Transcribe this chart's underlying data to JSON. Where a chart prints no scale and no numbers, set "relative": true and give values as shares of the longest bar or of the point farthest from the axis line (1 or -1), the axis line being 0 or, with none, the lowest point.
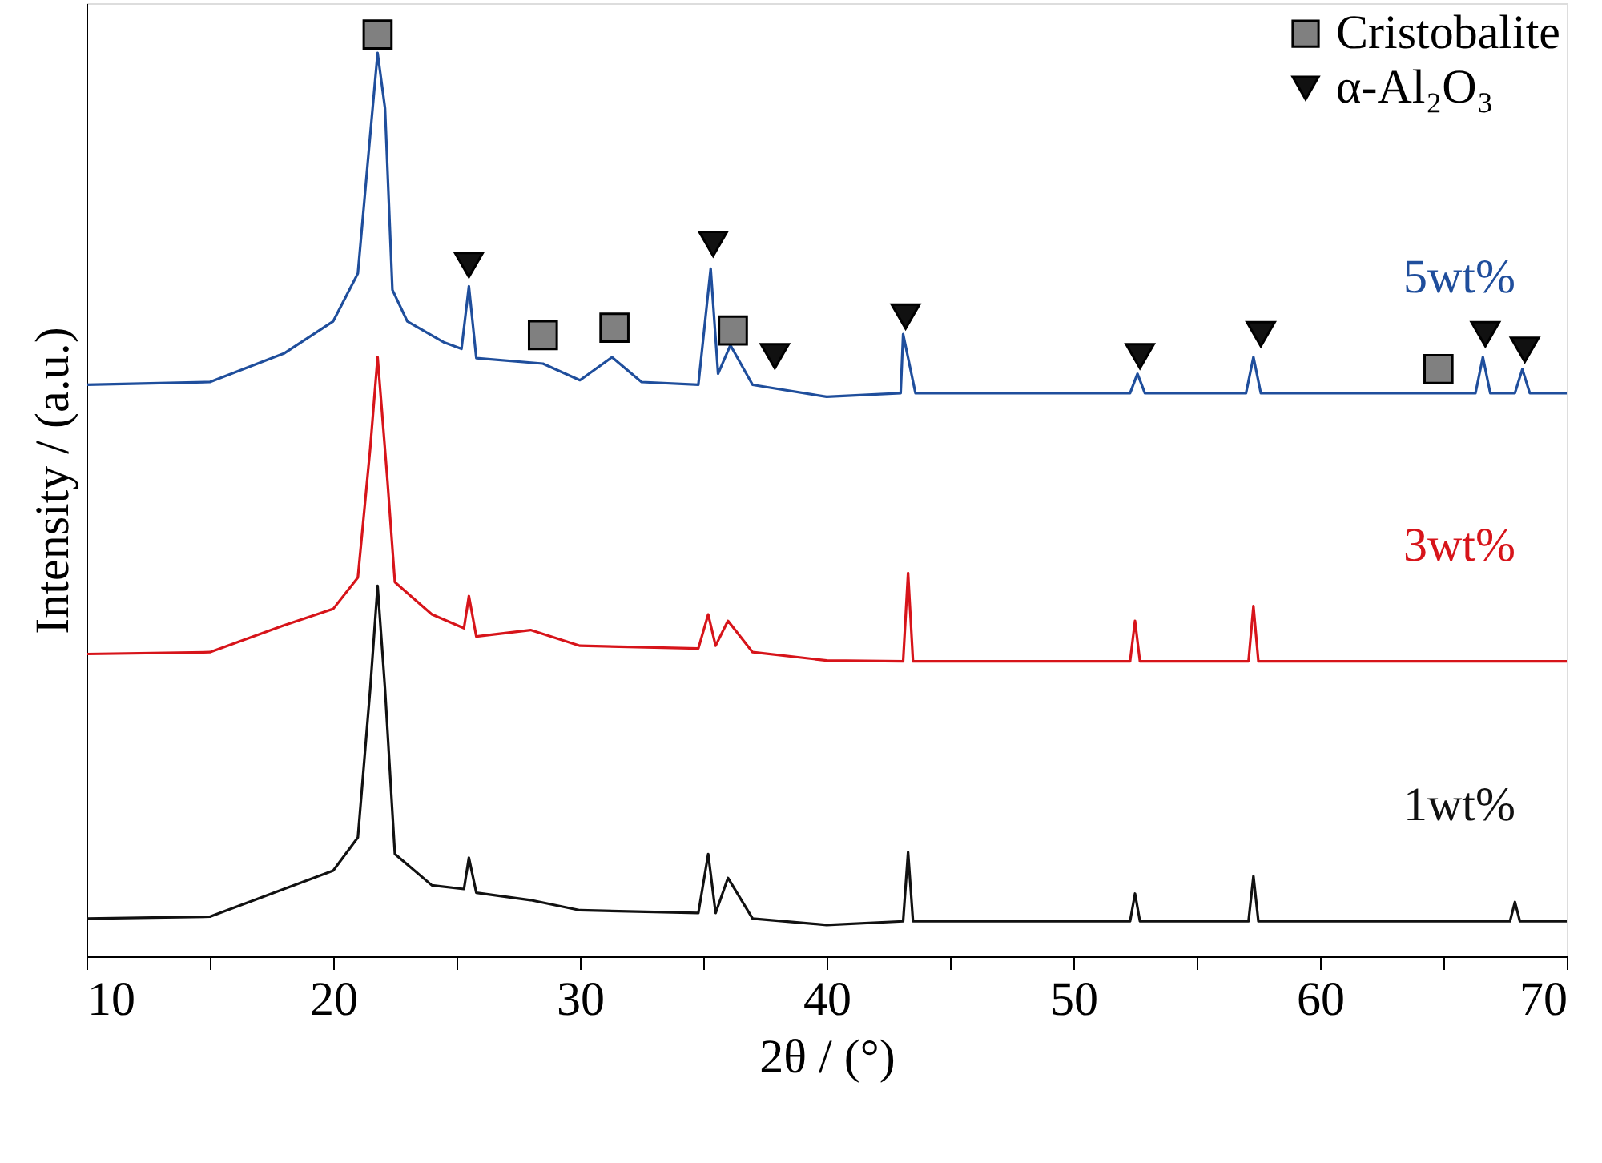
{
  "chart_data": {
    "type": "line",
    "relative": true,
    "xlabel": "2θ / (°)",
    "ylabel": "Intensity / (a.u.)",
    "xlim": [
      10,
      70
    ],
    "xticks": [
      10,
      {
        "value": 15,
        "label": null
      },
      20,
      {
        "value": 25,
        "label": null
      },
      30,
      {
        "value": 35,
        "label": null
      },
      40,
      {
        "value": 45,
        "label": null
      },
      50,
      {
        "value": 55,
        "label": null
      },
      60,
      {
        "value": 65,
        "label": null
      },
      70
    ],
    "legend": "top right",
    "grid": false,
    "series": [
      {
        "name": "5wt%",
        "color": "#1f4e9c",
        "x": [
          10,
          15,
          18,
          20,
          21,
          21.5,
          21.8,
          22.1,
          22.4,
          23,
          24.5,
          25.2,
          25.5,
          25.8,
          28.5,
          30,
          31.3,
          32.5,
          34.8,
          35.3,
          35.6,
          36.1,
          37,
          40,
          43,
          43.1,
          43.6,
          52.3,
          52.6,
          52.9,
          57,
          57.3,
          57.6,
          66.3,
          66.6,
          66.9,
          67.9,
          68.2,
          68.5,
          70
        ],
        "values": [
          0.62,
          0.623,
          0.654,
          0.689,
          0.741,
          0.891,
          0.98,
          0.92,
          0.723,
          0.689,
          0.666,
          0.659,
          0.727,
          0.649,
          0.643,
          0.625,
          0.65,
          0.623,
          0.62,
          0.746,
          0.632,
          0.663,
          0.62,
          0.607,
          0.611,
          0.675,
          0.611,
          0.611,
          0.632,
          0.611,
          0.611,
          0.65,
          0.611,
          0.611,
          0.65,
          0.611,
          0.611,
          0.637,
          0.611,
          0.611
        ]
      },
      {
        "name": "3wt%",
        "color": "#d7141a",
        "x": [
          10,
          15,
          18,
          20,
          21,
          21.5,
          21.8,
          22.2,
          22.5,
          24,
          25.3,
          25.5,
          25.8,
          28,
          30,
          34.8,
          35.2,
          35.5,
          36,
          37,
          40,
          43.1,
          43.3,
          43.5,
          52.3,
          52.5,
          52.7,
          57.1,
          57.3,
          57.5,
          70
        ],
        "values": [
          0.328,
          0.33,
          0.359,
          0.377,
          0.411,
          0.551,
          0.65,
          0.516,
          0.406,
          0.371,
          0.356,
          0.391,
          0.347,
          0.354,
          0.337,
          0.334,
          0.371,
          0.337,
          0.364,
          0.33,
          0.321,
          0.32,
          0.416,
          0.32,
          0.32,
          0.364,
          0.32,
          0.32,
          0.38,
          0.32,
          0.32
        ]
      },
      {
        "name": "1wt%",
        "color": "#111111",
        "x": [
          10,
          15,
          18,
          20,
          21,
          21.5,
          21.8,
          22.1,
          22.5,
          24,
          25.3,
          25.5,
          25.8,
          28,
          30,
          34.8,
          35.2,
          35.5,
          36,
          37,
          40,
          43.1,
          43.3,
          43.5,
          52.3,
          52.5,
          52.7,
          57.1,
          57.3,
          57.5,
          67.7,
          67.9,
          68.1,
          70
        ],
        "values": [
          0.041,
          0.043,
          0.073,
          0.093,
          0.129,
          0.29,
          0.402,
          0.29,
          0.111,
          0.077,
          0.073,
          0.107,
          0.069,
          0.061,
          0.05,
          0.047,
          0.111,
          0.047,
          0.085,
          0.041,
          0.034,
          0.038,
          0.113,
          0.038,
          0.038,
          0.068,
          0.038,
          0.038,
          0.087,
          0.038,
          0.038,
          0.059,
          0.038,
          0.038
        ]
      },
      {
        "name": "Cristobalite",
        "type": "scatter",
        "marker": "square",
        "color": "#808080",
        "x": [
          21.8,
          28.5,
          31.4,
          36.2,
          64.8
        ],
        "values": [
          1.0,
          0.674,
          0.682,
          0.679,
          0.637
        ]
      },
      {
        "name": "α-Al₂O₃",
        "type": "scatter",
        "marker": "triangle",
        "color": "#111111",
        "x": [
          25.5,
          35.4,
          37.9,
          43.2,
          52.7,
          57.6,
          66.7,
          68.3
        ],
        "values": [
          0.75,
          0.773,
          0.651,
          0.694,
          0.651,
          0.675,
          0.675,
          0.658
        ]
      }
    ]
  }
}
